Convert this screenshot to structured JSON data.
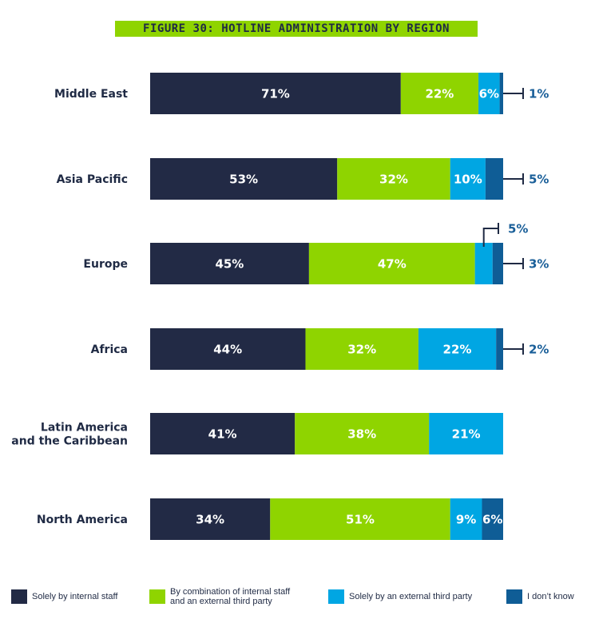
{
  "chart_data": {
    "type": "bar",
    "orientation": "horizontal",
    "stacked": true,
    "title": "FIGURE 30: HOTLINE ADMINISTRATION BY REGION",
    "categories": [
      "Middle East",
      "Asia Pacific",
      "Europe",
      "Africa",
      "Latin America\nand the Caribbean",
      "North America"
    ],
    "series": [
      {
        "name": "Solely by internal staff",
        "color": "#222a45",
        "values": [
          71,
          53,
          45,
          44,
          41,
          34
        ]
      },
      {
        "name": "By combination of internal staff\nand an external third party",
        "color": "#8fd400",
        "values": [
          22,
          32,
          47,
          32,
          38,
          51
        ]
      },
      {
        "name": "Solely by an external third party",
        "color": "#00a6e3",
        "values": [
          6,
          10,
          5,
          22,
          21,
          9
        ]
      },
      {
        "name": "I don’t know",
        "color": "#0f5d96",
        "values": [
          1,
          5,
          3,
          2,
          0,
          6
        ]
      }
    ],
    "value_suffix": "%",
    "xlim": [
      0,
      100
    ],
    "grid": false,
    "legend_position": "bottom"
  }
}
